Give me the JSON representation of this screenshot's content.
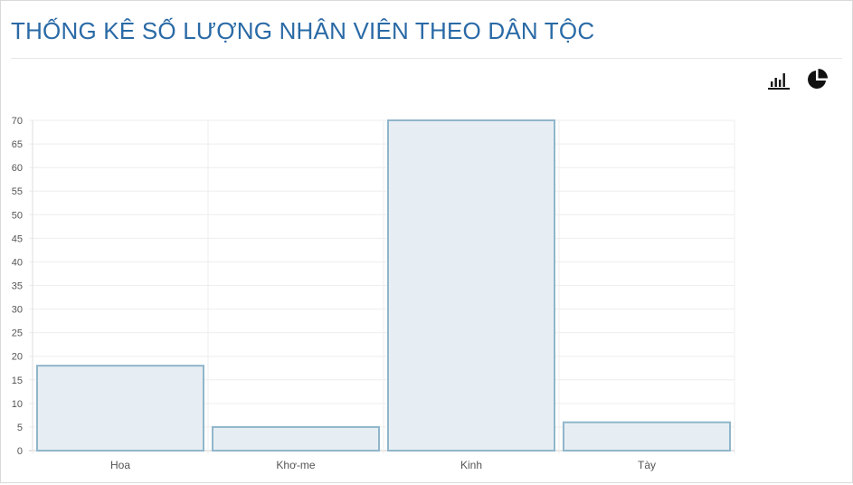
{
  "title": "THỐNG KÊ SỐ LƯỢNG NHÂN VIÊN THEO DÂN TỘC",
  "toolbar": {
    "bar_icon": "bar-chart-icon",
    "pie_icon": "pie-chart-icon"
  },
  "colors": {
    "bar_fill": "#e7eef3",
    "bar_stroke": "#90b6cb",
    "title": "#2a6aa6"
  },
  "chart_data": {
    "type": "bar",
    "categories": [
      "Hoa",
      "Khơ-me",
      "Kinh",
      "Tày"
    ],
    "values": [
      18,
      5,
      70,
      6
    ],
    "title": "",
    "xlabel": "",
    "ylabel": "",
    "ylim": [
      0,
      70
    ],
    "yticks": [
      0,
      5,
      10,
      15,
      20,
      25,
      30,
      35,
      40,
      45,
      50,
      55,
      60,
      65,
      70
    ],
    "grid": true,
    "legend": "none"
  }
}
